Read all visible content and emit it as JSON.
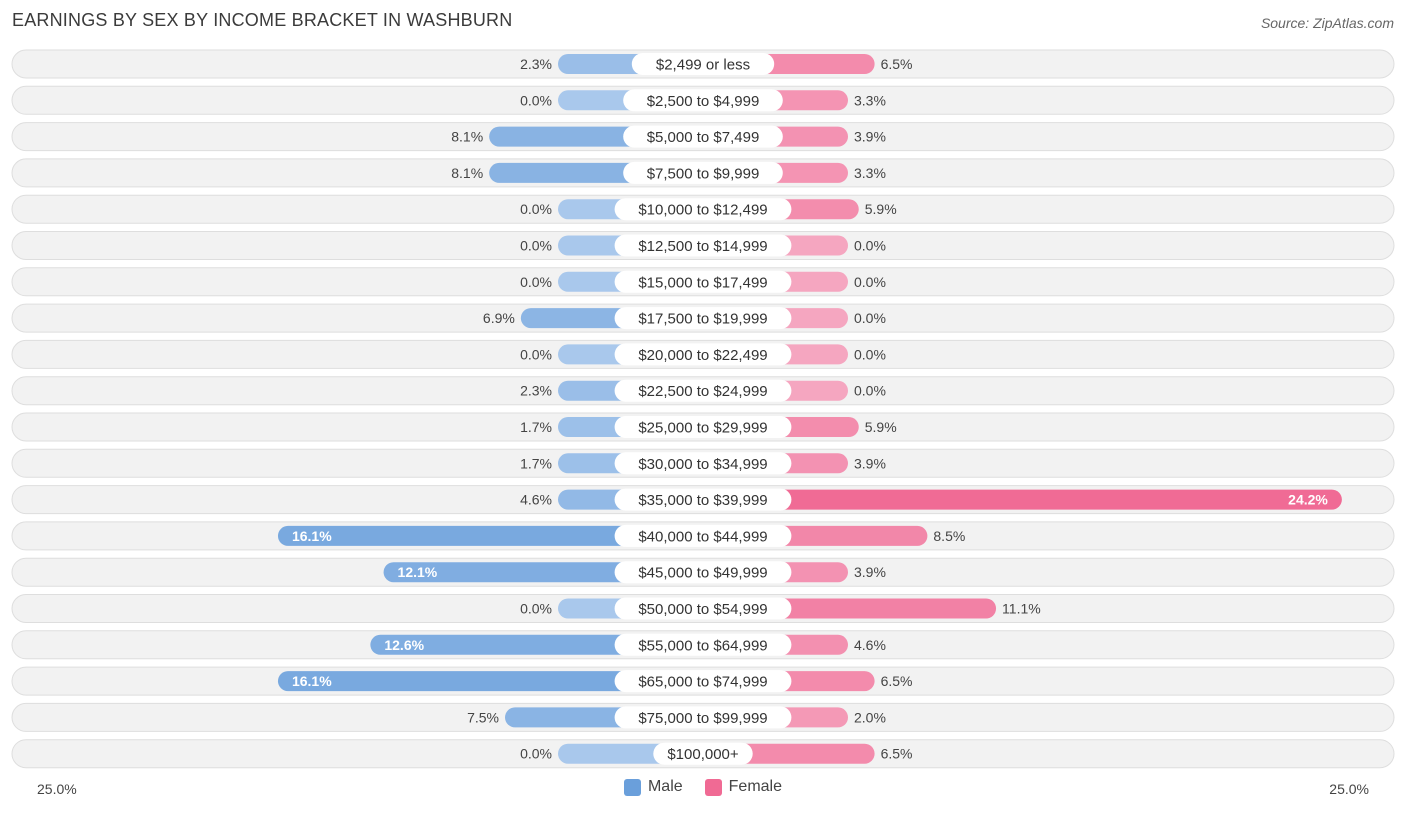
{
  "title": "EARNINGS BY SEX BY INCOME BRACKET IN WASHBURN",
  "source": "Source: ZipAtlas.com",
  "axis": {
    "left_label": "25.0%",
    "right_label": "25.0%"
  },
  "legend": {
    "male": "Male",
    "female": "Female"
  },
  "colors": {
    "male": "#6a9fdb",
    "female": "#f06a94",
    "male_light": "#a9c8ec",
    "female_light": "#f5a6c0"
  },
  "chart_data": {
    "type": "bar",
    "orientation": "horizontal-diverging",
    "title": "EARNINGS BY SEX BY INCOME BRACKET IN WASHBURN",
    "xlim": [
      -25,
      25
    ],
    "categories": [
      "$2,499 or less",
      "$2,500 to $4,999",
      "$5,000 to $7,499",
      "$7,500 to $9,999",
      "$10,000 to $12,499",
      "$12,500 to $14,999",
      "$15,000 to $17,499",
      "$17,500 to $19,999",
      "$20,000 to $22,499",
      "$22,500 to $24,999",
      "$25,000 to $29,999",
      "$30,000 to $34,999",
      "$35,000 to $39,999",
      "$40,000 to $44,999",
      "$45,000 to $49,999",
      "$50,000 to $54,999",
      "$55,000 to $64,999",
      "$65,000 to $74,999",
      "$75,000 to $99,999",
      "$100,000+"
    ],
    "series": [
      {
        "name": "Male",
        "values": [
          2.3,
          0.0,
          8.1,
          8.1,
          0.0,
          0.0,
          0.0,
          6.9,
          0.0,
          2.3,
          1.7,
          1.7,
          4.6,
          16.1,
          12.1,
          0.0,
          12.6,
          16.1,
          7.5,
          0.0
        ],
        "labels": [
          "2.3%",
          "0.0%",
          "8.1%",
          "8.1%",
          "0.0%",
          "0.0%",
          "0.0%",
          "6.9%",
          "0.0%",
          "2.3%",
          "1.7%",
          "1.7%",
          "4.6%",
          "16.1%",
          "12.1%",
          "0.0%",
          "12.6%",
          "16.1%",
          "7.5%",
          "0.0%"
        ]
      },
      {
        "name": "Female",
        "values": [
          6.5,
          3.3,
          3.9,
          3.3,
          5.9,
          0.0,
          0.0,
          0.0,
          0.0,
          0.0,
          5.9,
          3.9,
          24.2,
          8.5,
          3.9,
          11.1,
          4.6,
          6.5,
          2.0,
          6.5
        ],
        "labels": [
          "6.5%",
          "3.3%",
          "3.9%",
          "3.3%",
          "5.9%",
          "0.0%",
          "0.0%",
          "0.0%",
          "0.0%",
          "0.0%",
          "5.9%",
          "3.9%",
          "24.2%",
          "8.5%",
          "3.9%",
          "11.1%",
          "4.6%",
          "6.5%",
          "2.0%",
          "6.5%"
        ]
      }
    ]
  }
}
